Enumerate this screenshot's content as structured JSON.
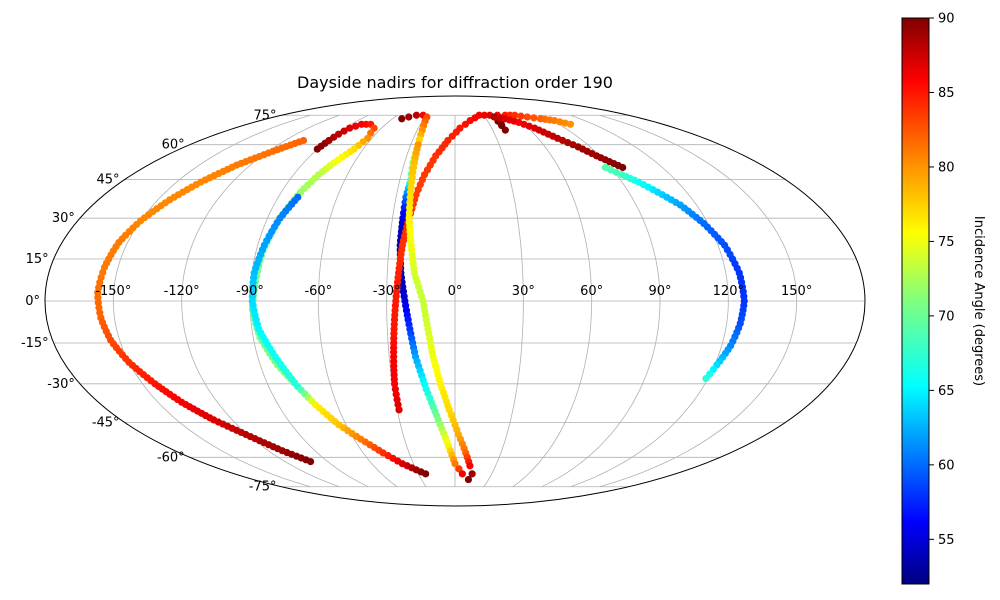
{
  "chart_data": {
    "type": "scatter",
    "projection": "mollweide",
    "title": "Dayside nadirs for diffraction order 190",
    "grid": true,
    "x_ticks": [
      "-150°",
      "-120°",
      "-90°",
      "-60°",
      "-30°",
      "0°",
      "30°",
      "60°",
      "90°",
      "120°",
      "150°"
    ],
    "y_ticks": [
      "75°",
      "60°",
      "45°",
      "30°",
      "15°",
      "0°",
      "-15°",
      "-30°",
      "-45°",
      "-60°",
      "-75°"
    ],
    "colorbar": {
      "label": "Incidence Angle (degrees)",
      "range": [
        52,
        90
      ],
      "ticks": [
        "90",
        "85",
        "80",
        "75",
        "70",
        "65",
        "60",
        "55"
      ],
      "colormap": "jet"
    },
    "tracks": [
      {
        "points": [
          [
            -107,
            62,
            82
          ],
          [
            -117,
            57,
            81.5
          ],
          [
            -128,
            51,
            81
          ],
          [
            -137,
            44,
            80.5
          ],
          [
            -144,
            37,
            80.5
          ],
          [
            -150,
            29,
            80.5
          ],
          [
            -154,
            21,
            81
          ],
          [
            -156,
            12,
            81
          ],
          [
            -157,
            3,
            81.5
          ],
          [
            -156,
            -6,
            82
          ],
          [
            -154,
            -14,
            83
          ],
          [
            -150,
            -22,
            84
          ],
          [
            -144,
            -30,
            85
          ],
          [
            -138,
            -37,
            86
          ],
          [
            -130,
            -44,
            87
          ],
          [
            -121,
            -50,
            88
          ],
          [
            -111,
            -57,
            89
          ],
          [
            -102,
            -62,
            90
          ]
        ]
      },
      {
        "points": [
          [
            -90,
            58,
            90
          ],
          [
            -89,
            62,
            89
          ],
          [
            -88,
            65,
            88
          ],
          [
            -86,
            68,
            87
          ],
          [
            -81,
            70,
            86
          ],
          [
            -73,
            70,
            85
          ],
          [
            -66,
            68,
            83
          ],
          [
            -63,
            63,
            80
          ],
          [
            -66,
            58,
            77
          ],
          [
            -72,
            52,
            75
          ],
          [
            -76,
            47,
            73
          ],
          [
            -80,
            40,
            72
          ],
          [
            -84,
            30,
            71
          ],
          [
            -87,
            18,
            70
          ],
          [
            -88,
            7,
            70
          ],
          [
            -89,
            -3,
            70
          ],
          [
            -87,
            -13,
            70
          ],
          [
            -82,
            -23,
            71
          ],
          [
            -76,
            -31,
            72
          ]
        ]
      },
      {
        "points": [
          [
            -80,
            38,
            60
          ],
          [
            -84,
            30,
            61
          ],
          [
            -87,
            20,
            62
          ],
          [
            -89,
            10,
            63
          ],
          [
            -89,
            0,
            64
          ],
          [
            -87,
            -10,
            65
          ],
          [
            -82,
            -20,
            66
          ],
          [
            -76,
            -31,
            67
          ],
          [
            -71,
            -38,
            76
          ],
          [
            -64,
            -46,
            78
          ],
          [
            -56,
            -52,
            81
          ],
          [
            -47,
            -58,
            84
          ],
          [
            -38,
            -63,
            87
          ],
          [
            -30,
            -66,
            89
          ],
          [
            -24,
            -68,
            90
          ]
        ]
      },
      {
        "points": [
          [
            -51,
            73,
            90
          ],
          [
            -46,
            74,
            89
          ],
          [
            -40,
            75,
            88
          ],
          [
            -33,
            75,
            86
          ],
          [
            -28,
            74,
            83
          ],
          [
            -26,
            67,
            80
          ],
          [
            -25,
            60,
            76
          ],
          [
            -25,
            52,
            72
          ],
          [
            -24,
            45,
            67
          ],
          [
            -25,
            38,
            60
          ],
          [
            -25,
            30,
            55
          ],
          [
            -25,
            20,
            53
          ],
          [
            -24,
            10,
            53
          ],
          [
            -22,
            0,
            55
          ],
          [
            -20,
            -10,
            58
          ],
          [
            -18,
            -20,
            62
          ],
          [
            -14,
            -32,
            66
          ],
          [
            -9,
            -44,
            71
          ],
          [
            -4,
            -55,
            76
          ],
          [
            0,
            -63,
            81
          ],
          [
            6,
            -68,
            86
          ],
          [
            12,
            -71,
            90
          ]
        ]
      },
      {
        "points": [
          [
            -29,
            -40,
            87
          ],
          [
            -29,
            -30,
            86
          ],
          [
            -28,
            -20,
            86
          ],
          [
            -27,
            -10,
            85
          ],
          [
            -26,
            0,
            85
          ],
          [
            -25,
            10,
            84.5
          ],
          [
            -24,
            20,
            84
          ],
          [
            -22,
            30,
            84
          ],
          [
            -20,
            39,
            83.5
          ],
          [
            -17,
            47,
            83.5
          ],
          [
            -12,
            55,
            84
          ],
          [
            -5,
            62,
            84.5
          ],
          [
            4,
            68,
            85
          ],
          [
            14,
            72,
            85.5
          ],
          [
            25,
            75,
            86
          ],
          [
            36,
            75,
            86.5
          ]
        ]
      },
      {
        "points": [
          [
            -25,
            60,
            80
          ],
          [
            -24,
            50,
            78
          ],
          [
            -23,
            40,
            77
          ],
          [
            -22,
            30,
            76
          ],
          [
            -20,
            20,
            75
          ],
          [
            -18,
            10,
            74
          ],
          [
            -14,
            0,
            73.5
          ],
          [
            -12,
            -10,
            74
          ],
          [
            -10,
            -20,
            75
          ],
          [
            -7,
            -30,
            76
          ],
          [
            -3,
            -40,
            77
          ],
          [
            2,
            -50,
            79
          ],
          [
            7,
            -58,
            82
          ],
          [
            11,
            -64,
            86
          ],
          [
            14,
            -68,
            89
          ]
        ]
      },
      {
        "points": [
          [
            40,
            70,
            90
          ],
          [
            40,
            72,
            90
          ],
          [
            39,
            74,
            90
          ],
          [
            40,
            67,
            90
          ]
        ]
      },
      {
        "points": [
          [
            44,
            75,
            86
          ],
          [
            52,
            75,
            85
          ],
          [
            62,
            75,
            84
          ],
          [
            72,
            74,
            83
          ],
          [
            82,
            73,
            82
          ],
          [
            92,
            72,
            81
          ],
          [
            100,
            70,
            80
          ]
        ]
      },
      {
        "points": [
          [
            40,
            74,
            88
          ],
          [
            48,
            73,
            87
          ],
          [
            57,
            71,
            86
          ],
          [
            65,
            68,
            87
          ],
          [
            74,
            63,
            88
          ],
          [
            82,
            59,
            89
          ],
          [
            88,
            55,
            89
          ],
          [
            97,
            50,
            90
          ]
        ]
      },
      {
        "points": [
          [
            87,
            50,
            69
          ],
          [
            93,
            47,
            68
          ],
          [
            99,
            44,
            66
          ],
          [
            105,
            40,
            64
          ],
          [
            112,
            35,
            62
          ],
          [
            118,
            28,
            60
          ],
          [
            123,
            20,
            59
          ],
          [
            126,
            10,
            58
          ],
          [
            127,
            0,
            58
          ],
          [
            126,
            -8,
            59
          ],
          [
            124,
            -16,
            61
          ],
          [
            121,
            -23,
            64
          ],
          [
            119,
            -28,
            67
          ]
        ]
      }
    ]
  }
}
